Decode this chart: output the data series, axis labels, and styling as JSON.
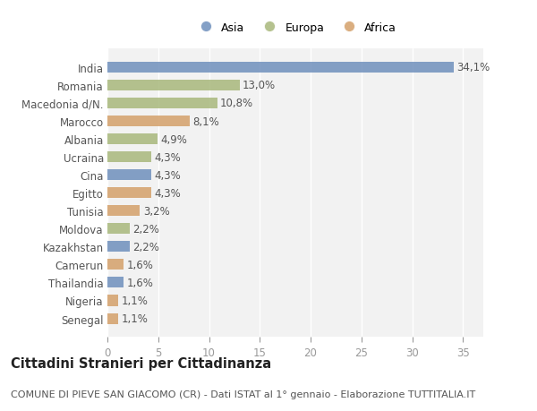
{
  "countries": [
    "India",
    "Romania",
    "Macedonia d/N.",
    "Marocco",
    "Albania",
    "Ucraina",
    "Cina",
    "Egitto",
    "Tunisia",
    "Moldova",
    "Kazakhstan",
    "Camerun",
    "Thailandia",
    "Nigeria",
    "Senegal"
  ],
  "values": [
    34.1,
    13.0,
    10.8,
    8.1,
    4.9,
    4.3,
    4.3,
    4.3,
    3.2,
    2.2,
    2.2,
    1.6,
    1.6,
    1.1,
    1.1
  ],
  "labels": [
    "34,1%",
    "13,0%",
    "10,8%",
    "8,1%",
    "4,9%",
    "4,3%",
    "4,3%",
    "4,3%",
    "3,2%",
    "2,2%",
    "2,2%",
    "1,6%",
    "1,6%",
    "1,1%",
    "1,1%"
  ],
  "continents": [
    "Asia",
    "Europa",
    "Europa",
    "Africa",
    "Europa",
    "Europa",
    "Asia",
    "Africa",
    "Africa",
    "Europa",
    "Asia",
    "Africa",
    "Asia",
    "Africa",
    "Africa"
  ],
  "colors": {
    "Asia": "#6f8fbc",
    "Europa": "#a8b87c",
    "Africa": "#d4a06a"
  },
  "legend": [
    "Asia",
    "Europa",
    "Africa"
  ],
  "legend_colors": [
    "#6f8fbc",
    "#a8b87c",
    "#d4a06a"
  ],
  "title": "Cittadini Stranieri per Cittadinanza",
  "subtitle": "COMUNE DI PIEVE SAN GIACOMO (CR) - Dati ISTAT al 1° gennaio - Elaborazione TUTTITALIA.IT",
  "xlim": [
    0,
    37
  ],
  "xticks": [
    0,
    5,
    10,
    15,
    20,
    25,
    30,
    35
  ],
  "bg_color": "#ffffff",
  "plot_bg_color": "#f2f2f2",
  "grid_color": "#ffffff",
  "bar_height": 0.6,
  "label_fontsize": 8.5,
  "tick_fontsize": 8.5,
  "title_fontsize": 10.5,
  "subtitle_fontsize": 8
}
